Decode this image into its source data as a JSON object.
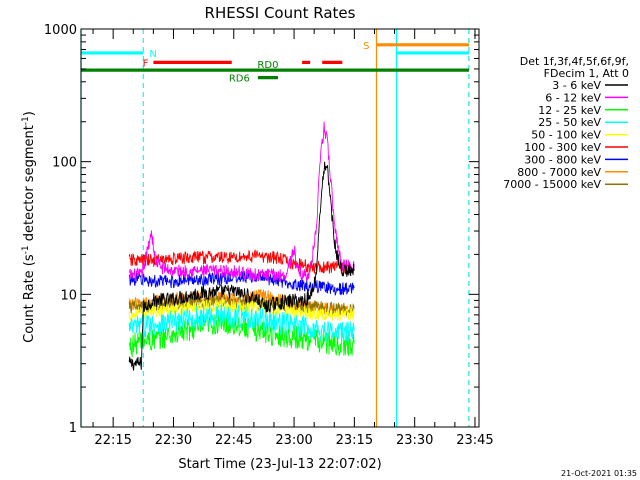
{
  "chart_data": {
    "type": "line",
    "title": "RHESSI Count Rates",
    "xlabel": "Start Time (23-Jul-13 22:07:02)",
    "ylabel_parts": [
      "Count Rate (s",
      "-1",
      " detector segment",
      "-1",
      ")"
    ],
    "x_unit": "minutes after 22:00 UT",
    "xlim": [
      7.0,
      106.0
    ],
    "ylim": [
      1,
      1000
    ],
    "yscale": "log",
    "x_ticks": [
      {
        "label": "22:15",
        "value": 15
      },
      {
        "label": "22:30",
        "value": 30
      },
      {
        "label": "22:45",
        "value": 45
      },
      {
        "label": "23:00",
        "value": 60
      },
      {
        "label": "23:15",
        "value": 75
      },
      {
        "label": "23:30",
        "value": 90
      },
      {
        "label": "23:45",
        "value": 105
      }
    ],
    "y_ticks": [
      {
        "label": "1",
        "value": 1
      },
      {
        "label": "10",
        "value": 10
      },
      {
        "label": "100",
        "value": 100
      },
      {
        "label": "1000",
        "value": 1000
      }
    ],
    "legend": {
      "placement": "right",
      "header": [
        "Det 1f,3f,4f,5f,6f,9f,",
        "FDecim 1, Att 0"
      ]
    },
    "series": [
      {
        "name": "3 - 6 keV",
        "color": "#000000",
        "x": [
          19,
          22,
          22.5,
          25,
          30,
          35,
          40,
          45,
          50,
          53,
          55,
          60,
          62,
          64,
          65.5,
          66.5,
          67.5,
          68.3,
          69,
          70,
          71,
          72,
          75
        ],
        "y": [
          3.0,
          3.0,
          8.0,
          9.0,
          9.2,
          10.0,
          10.5,
          10.5,
          9.5,
          8.0,
          8.5,
          9.0,
          9.0,
          9.5,
          14,
          45,
          90,
          85,
          55,
          25,
          18,
          15,
          15
        ]
      },
      {
        "name": "6 - 12 keV",
        "color": "#ff00ff",
        "x": [
          19,
          22,
          23,
          24.5,
          25.5,
          27,
          30,
          35,
          40,
          45,
          50,
          55,
          58,
          60,
          61,
          62,
          63,
          64,
          65.5,
          66.5,
          67.5,
          68.3,
          69,
          70,
          71,
          72,
          75
        ],
        "y": [
          14,
          14,
          18,
          30,
          18,
          16,
          15,
          15,
          15,
          15,
          14,
          14,
          14,
          22,
          15,
          14,
          14,
          15,
          30,
          100,
          185,
          140,
          80,
          35,
          22,
          17,
          16
        ]
      },
      {
        "name": "12 - 25 keV",
        "color": "#00ff00",
        "x": [
          19,
          22,
          25,
          30,
          35,
          40,
          45,
          50,
          55,
          60,
          65,
          70,
          75
        ],
        "y": [
          4.0,
          4.5,
          4.5,
          5.0,
          5.5,
          6.0,
          6.0,
          5.5,
          5.0,
          4.8,
          4.5,
          4.2,
          4.2
        ]
      },
      {
        "name": "25 - 50 keV",
        "color": "#00ffff",
        "x": [
          19,
          22,
          25,
          30,
          35,
          40,
          45,
          50,
          55,
          60,
          65,
          70,
          75
        ],
        "y": [
          5.5,
          5.8,
          6.0,
          6.2,
          6.6,
          6.9,
          6.9,
          6.6,
          6.2,
          5.8,
          5.5,
          5.2,
          5.2
        ]
      },
      {
        "name": "50 - 100 keV",
        "color": "#ffff00",
        "x": [
          19,
          22,
          25,
          30,
          35,
          40,
          45,
          50,
          55,
          60,
          65,
          70,
          75
        ],
        "y": [
          7.0,
          7.2,
          7.5,
          7.8,
          8.0,
          8.2,
          8.2,
          8.0,
          7.8,
          7.5,
          7.2,
          7.0,
          7.0
        ]
      },
      {
        "name": "100 - 300 keV",
        "color": "#ff0000",
        "x": [
          19,
          22,
          25,
          30,
          35,
          40,
          45,
          50,
          55,
          60,
          65,
          70,
          75
        ],
        "y": [
          18,
          18,
          18,
          18.5,
          19,
          19,
          19,
          19.5,
          19,
          17,
          16,
          16,
          16
        ]
      },
      {
        "name": "300 - 800 keV",
        "color": "#0000ff",
        "x": [
          19,
          22,
          25,
          30,
          35,
          40,
          45,
          50,
          55,
          60,
          65,
          70,
          75
        ],
        "y": [
          13,
          13,
          12.5,
          12.5,
          13,
          13,
          13.5,
          13.5,
          13,
          12,
          11.5,
          11,
          11
        ]
      },
      {
        "name": "800 - 7000 keV",
        "color": "#ff8c00",
        "x": [
          19,
          22,
          25,
          30,
          35,
          40,
          45,
          50,
          53,
          55,
          60,
          65,
          70,
          75
        ],
        "y": [
          8.5,
          8.5,
          8.8,
          9.2,
          9.5,
          9.5,
          9.0,
          9.5,
          10.0,
          9.2,
          8.5,
          8.0,
          7.6,
          7.6
        ]
      },
      {
        "name": "7000 - 15000 keV",
        "color": "#8b7500",
        "x": [
          19,
          22,
          25,
          30,
          35,
          40,
          45,
          50,
          55,
          60,
          65,
          70,
          75
        ],
        "y": [
          8.0,
          8.0,
          8.2,
          8.5,
          8.8,
          9.0,
          8.8,
          8.6,
          8.4,
          8.2,
          8.0,
          7.8,
          7.8
        ]
      }
    ],
    "flag_bars": [
      {
        "label": "N",
        "color": "#00ffff",
        "level": 660,
        "segments": [
          [
            7.0,
            22.5
          ],
          [
            85.5,
            103.5
          ]
        ]
      },
      {
        "label": "S",
        "color": "#ff8c00",
        "level": 760,
        "segments": [
          [
            80.5,
            103.5
          ]
        ]
      },
      {
        "label": "F",
        "color": "#ff0000",
        "level": 560,
        "segments": [
          [
            25.0,
            44.5
          ],
          [
            62.0,
            64.0
          ],
          [
            67.0,
            72.0
          ]
        ]
      },
      {
        "label": "RD0",
        "color": "#008000",
        "level": 490,
        "segments": [
          [
            7.0,
            103.5
          ]
        ]
      },
      {
        "label": "RD6",
        "color": "#008000",
        "level": 430,
        "segments": [
          [
            51.0,
            56.0
          ]
        ]
      }
    ],
    "vertical_lines": [
      {
        "x": 7.0,
        "color": "#00ffff",
        "style": "solid"
      },
      {
        "x": 22.5,
        "color": "#00ffff",
        "style": "dashed"
      },
      {
        "x": 80.5,
        "color": "#ff8c00",
        "style": "solid"
      },
      {
        "x": 85.5,
        "color": "#00ffff",
        "style": "solid"
      },
      {
        "x": 103.5,
        "color": "#ff8c00",
        "style": "dashed"
      },
      {
        "x": 103.5,
        "color": "#00ffff",
        "style": "dashed"
      }
    ],
    "footer_timestamp": "21-Oct-2021 01:35"
  }
}
